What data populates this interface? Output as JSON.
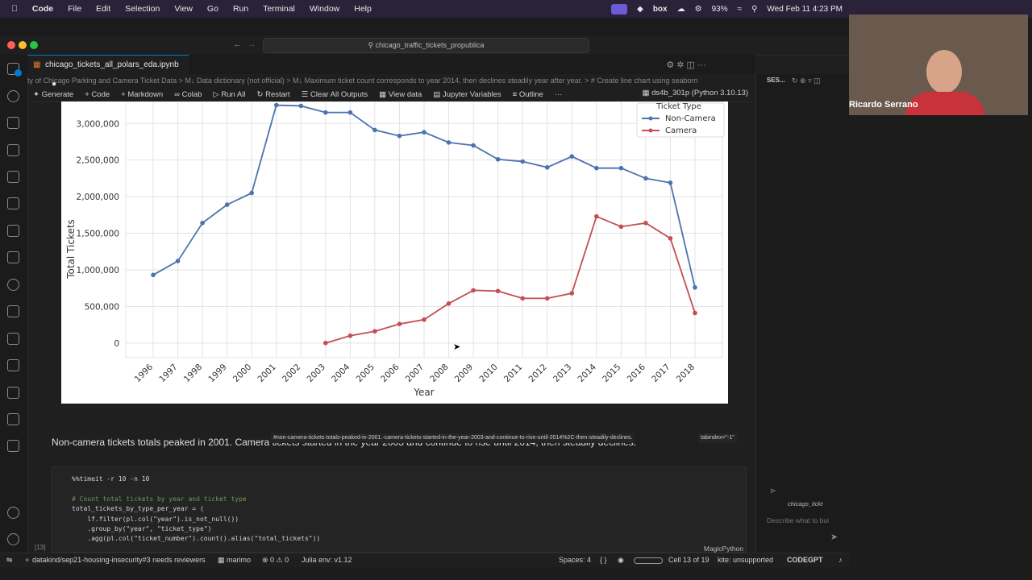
{
  "menubar": {
    "app": "Code",
    "items": [
      "File",
      "Edit",
      "Selection",
      "View",
      "Go",
      "Run",
      "Terminal",
      "Window",
      "Help"
    ],
    "battery": "93%",
    "datetime": "Wed Feb 11  4:23 PM",
    "box": "box"
  },
  "window": {
    "command_center": "chicago_traffic_tickets_propublica",
    "tab_title": "chicago_tickets_all_polars_eda.ipynb",
    "breadcrumb": "ty of Chicago Parking and Camera Ticket Data  >  M↓ Data dictionary (not official)  >  M↓ Maximum ticket count corresponds to year 2014, then declines steadily year after year.  >  # Create line chart using seaborn",
    "toolbar": [
      "Generate",
      "Code",
      "Markdown",
      "Colab",
      "Run All",
      "Restart",
      "Clear All Outputs",
      "View data",
      "Jupyter Variables",
      "Outline",
      "···"
    ],
    "kernel": "ds4b_301p (Python 3.10.13)"
  },
  "chart_data": {
    "type": "line",
    "xlabel": "Year",
    "ylabel": "Total Tickets",
    "legend_title": "Ticket Type",
    "legend_position": "top-right",
    "grid": true,
    "ylim": [
      -200000,
      3300000
    ],
    "yticks": [
      0,
      500000,
      1000000,
      1500000,
      2000000,
      2500000,
      3000000
    ],
    "ytick_labels": [
      "0",
      "500,000",
      "1,000,000",
      "1,500,000",
      "2,000,000",
      "2,500,000",
      "3,000,000"
    ],
    "x": [
      "1996",
      "1997",
      "1998",
      "1999",
      "2000",
      "2001",
      "2002",
      "2003",
      "2004",
      "2005",
      "2006",
      "2007",
      "2008",
      "2009",
      "2010",
      "2011",
      "2012",
      "2013",
      "2014",
      "2015",
      "2016",
      "2017",
      "2018"
    ],
    "series": [
      {
        "name": "Non-Camera",
        "color": "#4c72b0",
        "values": [
          930000,
          1120000,
          1640000,
          1890000,
          2050000,
          3250000,
          3240000,
          3150000,
          3150000,
          2910000,
          2830000,
          2880000,
          2740000,
          2700000,
          2510000,
          2480000,
          2400000,
          2550000,
          2390000,
          2390000,
          2250000,
          2190000,
          760000
        ]
      },
      {
        "name": "Camera",
        "color": "#c44e52",
        "values": [
          null,
          null,
          null,
          null,
          null,
          null,
          null,
          0,
          100000,
          160000,
          260000,
          320000,
          540000,
          720000,
          710000,
          610000,
          610000,
          680000,
          1730000,
          1590000,
          1640000,
          1430000,
          410000
        ]
      }
    ]
  },
  "markdown_cell": {
    "text": "Non-camera tickets totals peaked in 2001. Camera tickets started in the year 2003 and continue to rise until 2014, then steadily declines.",
    "tooltip": "#non-camera-tickets-totals-peaked-in-2001.-camera-tickets-started-in-the-year-2003-and-continue-to-rise-until-2014%2C-then-steadily-declines.",
    "tabindex": "tabindex=\"-1\""
  },
  "code_cell": {
    "lines": [
      "%%timeit -r 10 -n 10",
      "",
      "# Count total tickets by year and ticket type",
      "total_tickets_by_type_per_year = (",
      "    lf.filter(pl.col(\"year\").is_not_null())",
      "    .group_by(\"year\", \"ticket_type\")",
      "    .agg(pl.col(\"ticket_number\").count().alias(\"total_tickets\"))"
    ],
    "cell_number": "[13]",
    "language": "MagicPython"
  },
  "side_panel": {
    "title": "SES...",
    "chat_file": "chicago_tickt",
    "chat_placeholder": "Describe what to bui"
  },
  "statusbar": {
    "branch": "datakind/sep21-housing-insecurity#3 needs reviewers",
    "marimo": "marimo",
    "problems": "⊗ 0  ⚠ 0",
    "julia": "Julia env: v1.12",
    "spaces": "Spaces: 4",
    "braces": "{ }",
    "cell": "Cell 13 of 19",
    "kite": "kite: unsupported",
    "codegpt": "CODEGPT"
  },
  "webcam": {
    "name": "Ricardo Serrano"
  }
}
